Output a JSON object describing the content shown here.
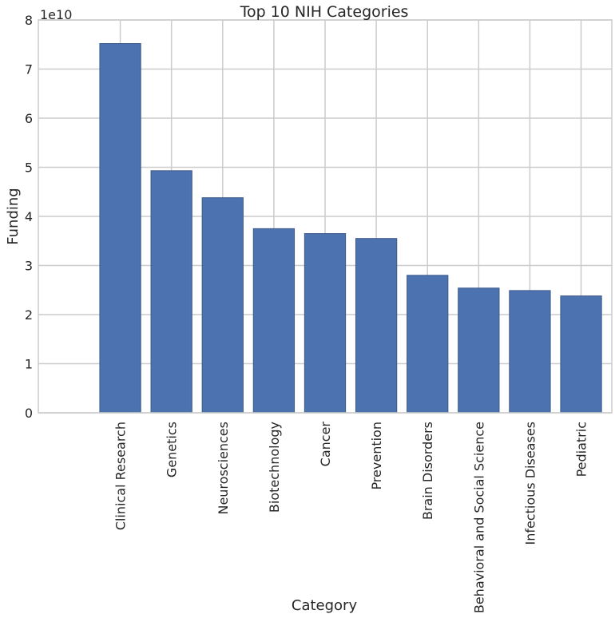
{
  "chart_data": {
    "type": "bar",
    "title": "Top 10 NIH Categories",
    "xlabel": "Category",
    "ylabel": "Funding",
    "y_offset_label": "1e10",
    "y_scale": 10000000000,
    "ylim": [
      0,
      8
    ],
    "yticks": [
      "0",
      "1",
      "2",
      "3",
      "4",
      "5",
      "6",
      "7",
      "8"
    ],
    "grid": true,
    "categories": [
      "Clinical Research",
      "Genetics",
      "Neurosciences",
      "Biotechnology",
      "Cancer",
      "Prevention",
      "Brain Disorders",
      "Behavioral and Social Science",
      "Infectious Diseases",
      "Pediatric"
    ],
    "values": [
      7.52,
      4.93,
      4.38,
      3.75,
      3.65,
      3.55,
      2.8,
      2.54,
      2.49,
      2.38
    ],
    "bar_color": "#4c72b0"
  }
}
